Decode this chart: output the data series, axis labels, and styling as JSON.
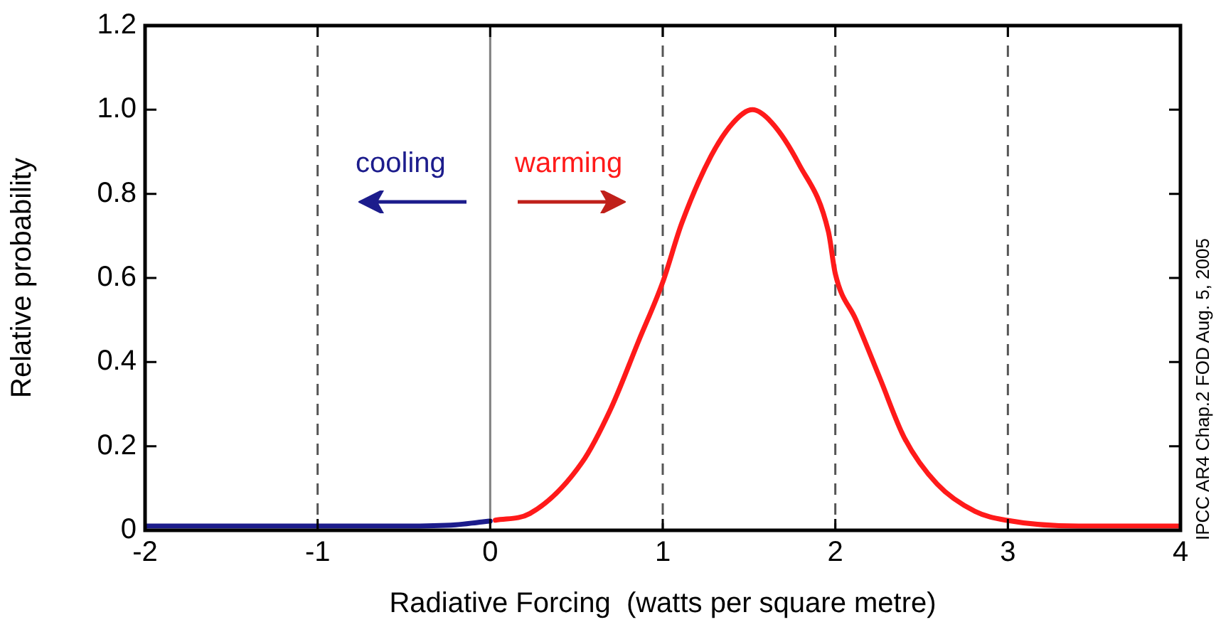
{
  "chart_data": {
    "type": "line",
    "xlabel": "Radiative Forcing  (watts per square metre)",
    "ylabel": "Relative probability",
    "xlim": [
      -2,
      4
    ],
    "xticks": [
      -2,
      -1,
      0,
      1,
      2,
      3,
      4
    ],
    "ylim": [
      0,
      1.2
    ],
    "yticks": [
      0,
      0.2,
      0.4,
      0.6,
      0.8,
      {
        "value": 1,
        "label": "1.0"
      },
      1.2
    ],
    "grid": false,
    "legend": false,
    "marker": "none",
    "line_style": "solid",
    "series": [
      {
        "color": "#1c1c8c",
        "x": [
          -2,
          -1.5,
          -1,
          -0.5,
          -0.2,
          -0.05,
          0
        ],
        "values": [
          0.01,
          0.01,
          0.01,
          0.01,
          0.013,
          0.02,
          0.022
        ]
      },
      {
        "color": "#ff1a1a",
        "x": [
          0.03,
          0.23,
          0.53,
          0.7,
          0.86,
          1.0,
          1.11,
          1.28,
          1.41,
          1.52,
          1.63,
          1.79,
          1.96,
          2.0,
          2.12,
          2.26,
          2.4,
          2.59,
          2.81,
          2.99,
          3.41,
          4.0
        ],
        "values": [
          0.024,
          0.04,
          0.16,
          0.29,
          0.45,
          0.59,
          0.73,
          0.89,
          0.97,
          1.0,
          0.97,
          0.87,
          0.71,
          0.61,
          0.5,
          0.36,
          0.22,
          0.11,
          0.045,
          0.024,
          0.01,
          0.01
        ]
      }
    ],
    "ref_lines": [
      {
        "axis": "x",
        "value": 0,
        "color": "#808080",
        "line_style": "solid"
      },
      {
        "axis": "x",
        "value": -1,
        "color": "#555555",
        "line_style": "dashed"
      },
      {
        "axis": "x",
        "value": 1,
        "color": "#555555",
        "line_style": "dashed"
      },
      {
        "axis": "x",
        "value": 2,
        "color": "#555555",
        "line_style": "dashed"
      },
      {
        "axis": "x",
        "value": 3,
        "color": "#555555",
        "line_style": "dashed"
      }
    ],
    "annotations": [
      "cooling",
      "warming",
      "IPCC AR4 Chap.2  FOD Aug. 5, 2005"
    ]
  }
}
